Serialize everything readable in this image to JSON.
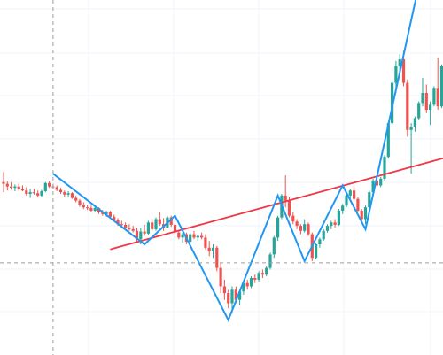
{
  "chart_data": {
    "type": "candlestick",
    "title": "",
    "xlabel": "",
    "ylabel": "",
    "grid": true,
    "up_color": "#26a69a",
    "down_color": "#ef5350",
    "zigzag_color": "#2196f3",
    "trendline_color": "#f23645",
    "crosshair_color": "#9e9e9e",
    "ylim": [
      0,
      100
    ],
    "candles": [
      {
        "o": 48.5,
        "h": 51.5,
        "l": 45.5,
        "c": 48.0
      },
      {
        "o": 48.0,
        "h": 48.8,
        "l": 46.0,
        "c": 47.2
      },
      {
        "o": 47.2,
        "h": 48.5,
        "l": 46.2,
        "c": 46.8
      },
      {
        "o": 46.8,
        "h": 47.8,
        "l": 45.8,
        "c": 47.2
      },
      {
        "o": 47.2,
        "h": 48.0,
        "l": 46.0,
        "c": 46.5
      },
      {
        "o": 46.5,
        "h": 47.5,
        "l": 45.8,
        "c": 46.0
      },
      {
        "o": 46.0,
        "h": 47.0,
        "l": 44.5,
        "c": 45.0
      },
      {
        "o": 45.0,
        "h": 46.5,
        "l": 43.8,
        "c": 45.5
      },
      {
        "o": 45.5,
        "h": 46.5,
        "l": 44.8,
        "c": 45.2
      },
      {
        "o": 45.2,
        "h": 46.0,
        "l": 44.0,
        "c": 44.5
      },
      {
        "o": 44.5,
        "h": 46.2,
        "l": 44.0,
        "c": 45.8
      },
      {
        "o": 45.8,
        "h": 48.5,
        "l": 45.5,
        "c": 48.2
      },
      {
        "o": 48.2,
        "h": 48.8,
        "l": 46.8,
        "c": 47.2
      },
      {
        "o": 47.2,
        "h": 48.0,
        "l": 46.5,
        "c": 47.0
      },
      {
        "o": 47.0,
        "h": 47.5,
        "l": 45.8,
        "c": 46.2
      },
      {
        "o": 46.2,
        "h": 46.8,
        "l": 45.0,
        "c": 45.5
      },
      {
        "o": 45.5,
        "h": 46.0,
        "l": 44.2,
        "c": 44.8
      },
      {
        "o": 44.8,
        "h": 45.8,
        "l": 44.0,
        "c": 45.2
      },
      {
        "o": 45.2,
        "h": 45.5,
        "l": 43.5,
        "c": 43.8
      },
      {
        "o": 43.8,
        "h": 44.5,
        "l": 42.5,
        "c": 43.0
      },
      {
        "o": 43.0,
        "h": 43.5,
        "l": 41.2,
        "c": 41.8
      },
      {
        "o": 41.8,
        "h": 42.5,
        "l": 40.5,
        "c": 41.0
      },
      {
        "o": 41.0,
        "h": 41.8,
        "l": 40.2,
        "c": 40.8
      },
      {
        "o": 40.8,
        "h": 41.5,
        "l": 39.5,
        "c": 40.0
      },
      {
        "o": 40.0,
        "h": 41.2,
        "l": 39.5,
        "c": 40.8
      },
      {
        "o": 40.8,
        "h": 41.0,
        "l": 39.0,
        "c": 39.5
      },
      {
        "o": 39.5,
        "h": 40.2,
        "l": 38.5,
        "c": 39.0
      },
      {
        "o": 39.0,
        "h": 40.0,
        "l": 38.2,
        "c": 39.5
      },
      {
        "o": 39.5,
        "h": 40.0,
        "l": 37.8,
        "c": 38.2
      },
      {
        "o": 38.2,
        "h": 38.8,
        "l": 36.8,
        "c": 37.2
      },
      {
        "o": 37.2,
        "h": 37.8,
        "l": 35.5,
        "c": 36.0
      },
      {
        "o": 36.0,
        "h": 37.0,
        "l": 35.2,
        "c": 35.8
      },
      {
        "o": 35.8,
        "h": 36.5,
        "l": 34.5,
        "c": 35.0
      },
      {
        "o": 35.0,
        "h": 36.0,
        "l": 34.0,
        "c": 34.5
      },
      {
        "o": 34.5,
        "h": 35.5,
        "l": 33.5,
        "c": 34.0
      },
      {
        "o": 34.0,
        "h": 35.0,
        "l": 30.5,
        "c": 31.5
      },
      {
        "o": 31.5,
        "h": 35.0,
        "l": 30.0,
        "c": 33.8
      },
      {
        "o": 33.8,
        "h": 35.8,
        "l": 32.5,
        "c": 33.2
      },
      {
        "o": 33.2,
        "h": 37.0,
        "l": 32.8,
        "c": 36.5
      },
      {
        "o": 36.5,
        "h": 37.5,
        "l": 34.0,
        "c": 34.5
      },
      {
        "o": 34.5,
        "h": 38.0,
        "l": 34.0,
        "c": 37.5
      },
      {
        "o": 37.5,
        "h": 39.5,
        "l": 35.5,
        "c": 36.0
      },
      {
        "o": 36.0,
        "h": 37.8,
        "l": 34.0,
        "c": 35.0
      },
      {
        "o": 35.0,
        "h": 38.5,
        "l": 34.8,
        "c": 38.0
      },
      {
        "o": 38.0,
        "h": 38.5,
        "l": 35.2,
        "c": 35.8
      },
      {
        "o": 35.8,
        "h": 36.2,
        "l": 33.0,
        "c": 33.5
      },
      {
        "o": 33.5,
        "h": 34.0,
        "l": 31.5,
        "c": 32.0
      },
      {
        "o": 32.0,
        "h": 33.5,
        "l": 30.5,
        "c": 33.0
      },
      {
        "o": 33.0,
        "h": 33.5,
        "l": 30.0,
        "c": 30.8
      },
      {
        "o": 30.8,
        "h": 33.5,
        "l": 30.5,
        "c": 33.0
      },
      {
        "o": 33.0,
        "h": 34.0,
        "l": 31.5,
        "c": 32.0
      },
      {
        "o": 32.0,
        "h": 33.0,
        "l": 31.0,
        "c": 32.5
      },
      {
        "o": 32.5,
        "h": 33.5,
        "l": 31.5,
        "c": 32.0
      },
      {
        "o": 32.0,
        "h": 33.0,
        "l": 28.5,
        "c": 29.0
      },
      {
        "o": 29.0,
        "h": 31.0,
        "l": 26.5,
        "c": 28.0
      },
      {
        "o": 28.0,
        "h": 30.0,
        "l": 26.0,
        "c": 29.0
      },
      {
        "o": 29.0,
        "h": 29.5,
        "l": 22.0,
        "c": 23.0
      },
      {
        "o": 23.0,
        "h": 24.5,
        "l": 15.5,
        "c": 17.5
      },
      {
        "o": 17.5,
        "h": 19.5,
        "l": 13.5,
        "c": 15.5
      },
      {
        "o": 15.5,
        "h": 16.5,
        "l": 11.0,
        "c": 12.5
      },
      {
        "o": 12.5,
        "h": 17.5,
        "l": 9.5,
        "c": 16.5
      },
      {
        "o": 16.5,
        "h": 17.5,
        "l": 12.5,
        "c": 13.5
      },
      {
        "o": 13.5,
        "h": 16.5,
        "l": 12.0,
        "c": 16.0
      },
      {
        "o": 16.0,
        "h": 19.0,
        "l": 15.0,
        "c": 18.5
      },
      {
        "o": 18.5,
        "h": 19.5,
        "l": 16.5,
        "c": 17.5
      },
      {
        "o": 17.5,
        "h": 20.5,
        "l": 17.0,
        "c": 20.0
      },
      {
        "o": 20.0,
        "h": 21.0,
        "l": 18.5,
        "c": 19.5
      },
      {
        "o": 19.5,
        "h": 22.0,
        "l": 19.0,
        "c": 21.5
      },
      {
        "o": 21.5,
        "h": 22.5,
        "l": 20.0,
        "c": 21.0
      },
      {
        "o": 21.0,
        "h": 23.5,
        "l": 20.5,
        "c": 23.0
      },
      {
        "o": 23.0,
        "h": 27.5,
        "l": 22.5,
        "c": 27.0
      },
      {
        "o": 27.0,
        "h": 32.5,
        "l": 26.0,
        "c": 32.0
      },
      {
        "o": 32.0,
        "h": 38.5,
        "l": 31.0,
        "c": 38.0
      },
      {
        "o": 38.0,
        "h": 45.0,
        "l": 37.5,
        "c": 44.5
      },
      {
        "o": 44.5,
        "h": 50.5,
        "l": 41.0,
        "c": 43.0
      },
      {
        "o": 43.0,
        "h": 44.0,
        "l": 38.0,
        "c": 38.5
      },
      {
        "o": 38.5,
        "h": 39.5,
        "l": 36.0,
        "c": 36.8
      },
      {
        "o": 36.8,
        "h": 37.5,
        "l": 34.5,
        "c": 35.5
      },
      {
        "o": 35.5,
        "h": 36.0,
        "l": 33.0,
        "c": 34.0
      },
      {
        "o": 34.0,
        "h": 37.5,
        "l": 33.5,
        "c": 36.0
      },
      {
        "o": 36.0,
        "h": 36.5,
        "l": 32.5,
        "c": 33.0
      },
      {
        "o": 33.0,
        "h": 33.5,
        "l": 25.0,
        "c": 26.0
      },
      {
        "o": 26.0,
        "h": 30.5,
        "l": 25.5,
        "c": 30.0
      },
      {
        "o": 30.0,
        "h": 32.0,
        "l": 29.0,
        "c": 31.5
      },
      {
        "o": 31.5,
        "h": 34.5,
        "l": 31.0,
        "c": 34.0
      },
      {
        "o": 34.0,
        "h": 36.0,
        "l": 33.5,
        "c": 35.5
      },
      {
        "o": 35.5,
        "h": 37.0,
        "l": 34.5,
        "c": 36.5
      },
      {
        "o": 36.5,
        "h": 37.5,
        "l": 35.0,
        "c": 35.8
      },
      {
        "o": 35.8,
        "h": 40.5,
        "l": 35.5,
        "c": 40.0
      },
      {
        "o": 40.0,
        "h": 42.0,
        "l": 39.0,
        "c": 41.5
      },
      {
        "o": 41.5,
        "h": 45.0,
        "l": 41.0,
        "c": 44.5
      },
      {
        "o": 44.5,
        "h": 46.5,
        "l": 43.5,
        "c": 46.0
      },
      {
        "o": 46.0,
        "h": 47.5,
        "l": 42.5,
        "c": 43.5
      },
      {
        "o": 43.5,
        "h": 44.0,
        "l": 39.5,
        "c": 40.0
      },
      {
        "o": 40.0,
        "h": 40.5,
        "l": 36.5,
        "c": 37.5
      },
      {
        "o": 37.5,
        "h": 41.5,
        "l": 36.0,
        "c": 41.0
      },
      {
        "o": 41.0,
        "h": 46.0,
        "l": 40.5,
        "c": 45.5
      },
      {
        "o": 45.5,
        "h": 49.5,
        "l": 45.0,
        "c": 49.0
      },
      {
        "o": 49.0,
        "h": 50.5,
        "l": 47.0,
        "c": 47.5
      },
      {
        "o": 47.5,
        "h": 50.0,
        "l": 47.0,
        "c": 49.5
      },
      {
        "o": 49.5,
        "h": 56.5,
        "l": 49.0,
        "c": 56.0
      },
      {
        "o": 56.0,
        "h": 66.5,
        "l": 55.5,
        "c": 66.0
      },
      {
        "o": 66.0,
        "h": 78.5,
        "l": 65.5,
        "c": 78.0
      },
      {
        "o": 78.0,
        "h": 84.5,
        "l": 75.0,
        "c": 83.0
      },
      {
        "o": 83.0,
        "h": 86.5,
        "l": 81.0,
        "c": 85.0
      },
      {
        "o": 85.0,
        "h": 87.5,
        "l": 77.0,
        "c": 78.0
      },
      {
        "o": 78.0,
        "h": 79.0,
        "l": 62.0,
        "c": 64.0
      },
      {
        "o": 64.0,
        "h": 66.0,
        "l": 51.0,
        "c": 65.0
      },
      {
        "o": 65.0,
        "h": 68.0,
        "l": 63.5,
        "c": 67.5
      },
      {
        "o": 67.5,
        "h": 72.5,
        "l": 67.0,
        "c": 72.0
      },
      {
        "o": 72.0,
        "h": 79.5,
        "l": 71.0,
        "c": 75.0
      },
      {
        "o": 75.0,
        "h": 77.5,
        "l": 69.0,
        "c": 70.0
      },
      {
        "o": 70.0,
        "h": 72.5,
        "l": 65.5,
        "c": 71.5
      },
      {
        "o": 71.5,
        "h": 77.0,
        "l": 71.0,
        "c": 76.5
      },
      {
        "o": 76.5,
        "h": 85.5,
        "l": 70.0,
        "c": 71.0
      },
      {
        "o": 71.0,
        "h": 83.5,
        "l": 70.5,
        "c": 83.0
      },
      {
        "o": 83.0,
        "h": 87.5,
        "l": 74.5,
        "c": 75.0
      }
    ],
    "zigzag": [
      [
        13,
        51.0
      ],
      [
        37,
        30.0
      ],
      [
        45,
        38.5
      ],
      [
        59,
        7.5
      ],
      [
        72,
        44.5
      ],
      [
        79,
        25.0
      ],
      [
        89,
        47.5
      ],
      [
        95,
        34.5
      ],
      [
        109,
        107.0
      ]
    ],
    "trendline": [
      [
        28,
        28.5
      ],
      [
        128,
        59.5
      ]
    ],
    "crosshair": {
      "x_index": 13,
      "y_value": 24.5
    }
  }
}
